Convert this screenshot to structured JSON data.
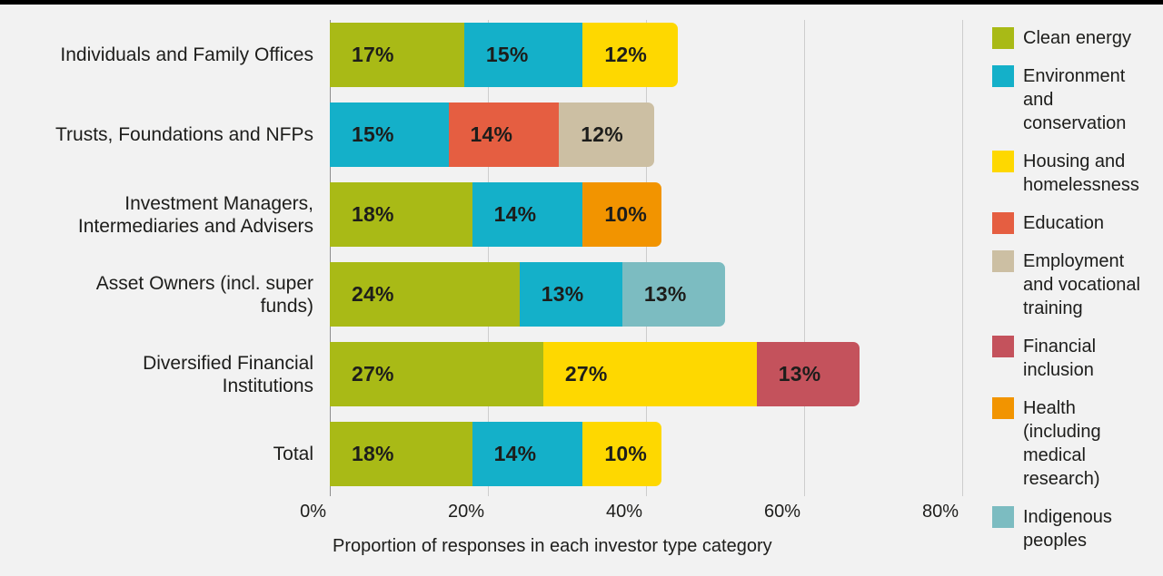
{
  "page": {
    "background": "#f2f2f2",
    "text_color": "#1d1d1b",
    "gridline_color": "#cdcdcd",
    "axis_line_color": "#8f8f8f",
    "top_bar_color": "#000000"
  },
  "chart_data": {
    "type": "bar",
    "orientation": "horizontal-stacked",
    "title": "",
    "xlabel": "Proportion of responses in each investor type category",
    "x_ticks": [
      "0%",
      "20%",
      "40%",
      "60%",
      "80%"
    ],
    "x_tick_values": [
      0,
      20,
      40,
      60,
      80
    ],
    "xlim": [
      0,
      100
    ],
    "grid": "vertical",
    "legend_position": "right",
    "series_colors": {
      "Clean energy": "#a9ba16",
      "Environment and conservation": "#14b0c9",
      "Housing and homelessness": "#fed800",
      "Education": "#e55e41",
      "Employment and vocational training": "#ccbfa3",
      "Financial inclusion": "#c4525c",
      "Health (including medical research)": "#f29400",
      "Indigenous peoples": "#7cbcc1"
    },
    "legend": [
      {
        "label": "Clean energy",
        "display": "Clean energy"
      },
      {
        "label": "Environment and conservation",
        "display": "Environment and\nconservation"
      },
      {
        "label": "Housing and homelessness",
        "display": "Housing and\nhomelessness"
      },
      {
        "label": "Education",
        "display": "Education"
      },
      {
        "label": "Employment and vocational training",
        "display": "Employment\nand vocational\ntraining"
      },
      {
        "label": "Financial inclusion",
        "display": "Financial\ninclusion"
      },
      {
        "label": "Health (including medical research)",
        "display": "Health (including\nmedical research)"
      },
      {
        "label": "Indigenous peoples",
        "display": "Indigenous\npeoples"
      }
    ],
    "rows": [
      {
        "category": "Individuals and Family Offices",
        "segments": [
          {
            "series": "Clean energy",
            "value": 17,
            "label": "17%"
          },
          {
            "series": "Environment and conservation",
            "value": 15,
            "label": "15%"
          },
          {
            "series": "Housing and homelessness",
            "value": 12,
            "label": "12%"
          }
        ]
      },
      {
        "category": "Trusts, Foundations and NFPs",
        "segments": [
          {
            "series": "Environment and conservation",
            "value": 15,
            "label": "15%"
          },
          {
            "series": "Education",
            "value": 14,
            "label": "14%"
          },
          {
            "series": "Employment and vocational training",
            "value": 12,
            "label": "12%"
          }
        ]
      },
      {
        "category": "Investment Managers,\nIntermediaries and Advisers",
        "segments": [
          {
            "series": "Clean energy",
            "value": 18,
            "label": "18%"
          },
          {
            "series": "Environment and conservation",
            "value": 14,
            "label": "14%"
          },
          {
            "series": "Health (including medical research)",
            "value": 10,
            "label": "10%"
          }
        ]
      },
      {
        "category": "Asset Owners (incl. super\nfunds)",
        "segments": [
          {
            "series": "Clean energy",
            "value": 24,
            "label": "24%"
          },
          {
            "series": "Environment and conservation",
            "value": 13,
            "label": "13%"
          },
          {
            "series": "Indigenous peoples",
            "value": 13,
            "label": "13%"
          }
        ]
      },
      {
        "category": "Diversified Financial\nInstitutions",
        "segments": [
          {
            "series": "Clean energy",
            "value": 27,
            "label": "27%"
          },
          {
            "series": "Housing and homelessness",
            "value": 27,
            "label": "27%"
          },
          {
            "series": "Financial inclusion",
            "value": 13,
            "label": "13%"
          }
        ]
      },
      {
        "category": "Total",
        "segments": [
          {
            "series": "Clean energy",
            "value": 18,
            "label": "18%"
          },
          {
            "series": "Environment and conservation",
            "value": 14,
            "label": "14%"
          },
          {
            "series": "Housing and homelessness",
            "value": 10,
            "label": "10%"
          }
        ]
      }
    ]
  }
}
